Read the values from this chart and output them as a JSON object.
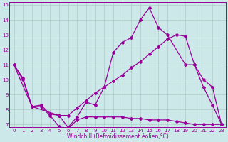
{
  "xlabel": "Windchill (Refroidissement éolien,°C)",
  "background_color": "#cce8e8",
  "line_color": "#990099",
  "xlim": [
    -0.5,
    23.5
  ],
  "ylim": [
    6.8,
    15.2
  ],
  "yticks": [
    7,
    8,
    9,
    10,
    11,
    12,
    13,
    14,
    15
  ],
  "xticks": [
    0,
    1,
    2,
    3,
    4,
    5,
    6,
    7,
    8,
    9,
    10,
    11,
    12,
    13,
    14,
    15,
    16,
    17,
    18,
    19,
    20,
    21,
    22,
    23
  ],
  "line1_x": [
    0,
    1,
    2,
    3,
    4,
    5,
    6,
    7,
    8,
    9,
    10,
    11,
    12,
    13,
    14,
    15,
    16,
    17,
    18,
    19,
    20,
    21,
    22,
    23
  ],
  "line1_y": [
    11.0,
    10.1,
    8.2,
    8.2,
    7.6,
    6.85,
    6.7,
    7.3,
    7.5,
    7.5,
    7.5,
    7.5,
    7.5,
    7.4,
    7.4,
    7.3,
    7.3,
    7.3,
    7.2,
    7.1,
    7.0,
    7.0,
    7.0,
    7.0
  ],
  "line2_x": [
    0,
    2,
    5,
    6,
    7,
    8,
    9,
    10,
    11,
    12,
    13,
    14,
    15,
    16,
    17,
    19,
    20,
    21,
    22,
    23
  ],
  "line2_y": [
    11.0,
    8.2,
    7.6,
    6.8,
    7.5,
    8.5,
    8.3,
    9.5,
    11.8,
    12.5,
    12.8,
    14.0,
    14.8,
    13.5,
    13.0,
    11.0,
    11.0,
    9.5,
    8.3,
    7.0
  ],
  "line3_x": [
    0,
    1,
    2,
    3,
    4,
    5,
    6,
    7,
    8,
    9,
    10,
    11,
    12,
    13,
    14,
    15,
    16,
    17,
    18,
    19,
    20,
    21,
    22,
    23
  ],
  "line3_y": [
    11.0,
    10.0,
    8.2,
    8.3,
    7.7,
    7.6,
    7.6,
    8.1,
    8.6,
    9.1,
    9.5,
    9.9,
    10.3,
    10.8,
    11.2,
    11.7,
    12.2,
    12.7,
    13.0,
    12.9,
    11.0,
    10.0,
    9.5,
    7.0
  ],
  "grid_color": "#b0c8c8",
  "marker": "D",
  "markersize": 2,
  "linewidth": 0.9,
  "tick_fontsize": 5,
  "xlabel_fontsize": 5.5
}
